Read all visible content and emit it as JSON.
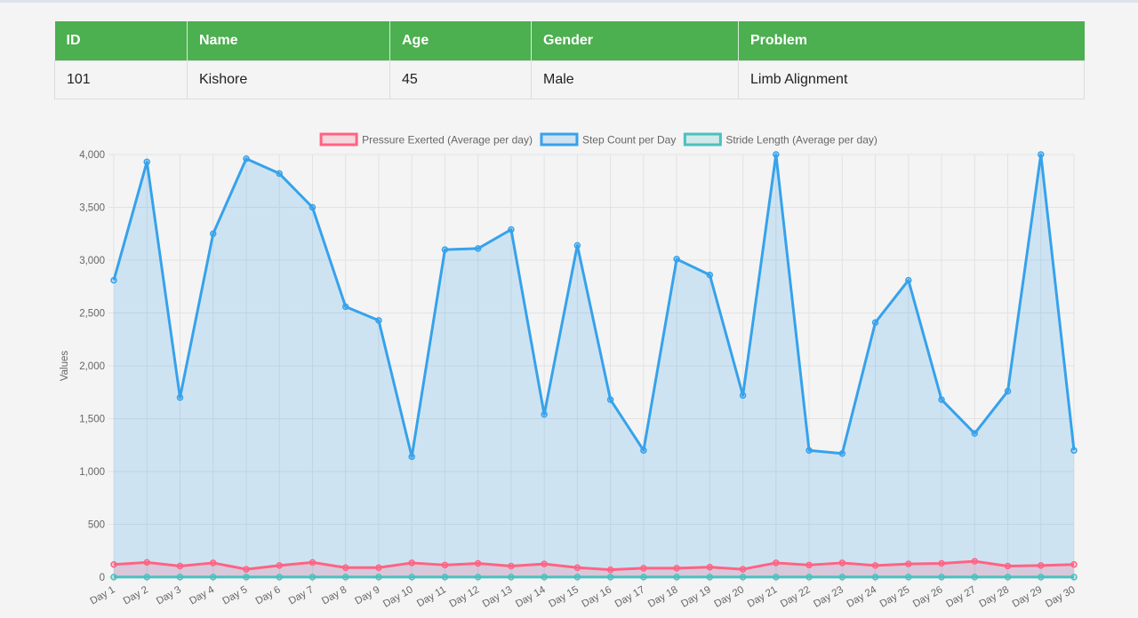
{
  "table": {
    "headers": [
      "ID",
      "Name",
      "Age",
      "Gender",
      "Problem"
    ],
    "row": [
      "101",
      "Kishore",
      "45",
      "Male",
      "Limb Alignment"
    ]
  },
  "chart_data": {
    "type": "line",
    "ylabel": "Values",
    "ylim": [
      0,
      4000
    ],
    "yticks": [
      0,
      500,
      1000,
      1500,
      2000,
      2500,
      3000,
      3500,
      4000
    ],
    "ytick_labels": [
      "0",
      "500",
      "1,000",
      "1,500",
      "2,000",
      "2,500",
      "3,000",
      "3,500",
      "4,000"
    ],
    "grid": true,
    "legend_position": "top",
    "categories": [
      "Day 1",
      "Day 2",
      "Day 3",
      "Day 4",
      "Day 5",
      "Day 6",
      "Day 7",
      "Day 8",
      "Day 9",
      "Day 10",
      "Day 11",
      "Day 12",
      "Day 13",
      "Day 14",
      "Day 15",
      "Day 16",
      "Day 17",
      "Day 18",
      "Day 19",
      "Day 20",
      "Day 21",
      "Day 22",
      "Day 23",
      "Day 24",
      "Day 25",
      "Day 26",
      "Day 27",
      "Day 28",
      "Day 29",
      "Day 30"
    ],
    "series": [
      {
        "name": "Pressure Exerted (Average per day)",
        "line_color": "#ff6384",
        "fill_color": "rgba(255,99,132,0.2)",
        "values": [
          120,
          140,
          105,
          135,
          75,
          110,
          140,
          90,
          90,
          135,
          115,
          130,
          105,
          125,
          90,
          70,
          85,
          85,
          95,
          75,
          135,
          115,
          135,
          110,
          125,
          130,
          150,
          105,
          110,
          120
        ]
      },
      {
        "name": "Step Count per Day",
        "line_color": "#36a2eb",
        "fill_color": "rgba(54,162,235,0.2)",
        "values": [
          2810,
          3930,
          1700,
          3250,
          3960,
          3820,
          3500,
          2560,
          2430,
          1140,
          3100,
          3110,
          3290,
          1540,
          3140,
          1680,
          1200,
          3010,
          2860,
          1720,
          4000,
          1200,
          1170,
          2410,
          2810,
          1680,
          1360,
          1760,
          4000,
          1200
        ]
      },
      {
        "name": "Stride Length (Average per day)",
        "line_color": "#4bc0c0",
        "fill_color": "rgba(75,192,192,0.2)",
        "values": [
          1,
          1,
          1,
          1,
          1,
          1,
          1,
          1,
          1,
          1,
          1,
          1,
          1,
          1,
          1,
          1,
          1,
          1,
          1,
          1,
          1,
          1,
          1,
          1,
          1,
          1,
          1,
          1,
          1,
          1
        ]
      }
    ]
  }
}
